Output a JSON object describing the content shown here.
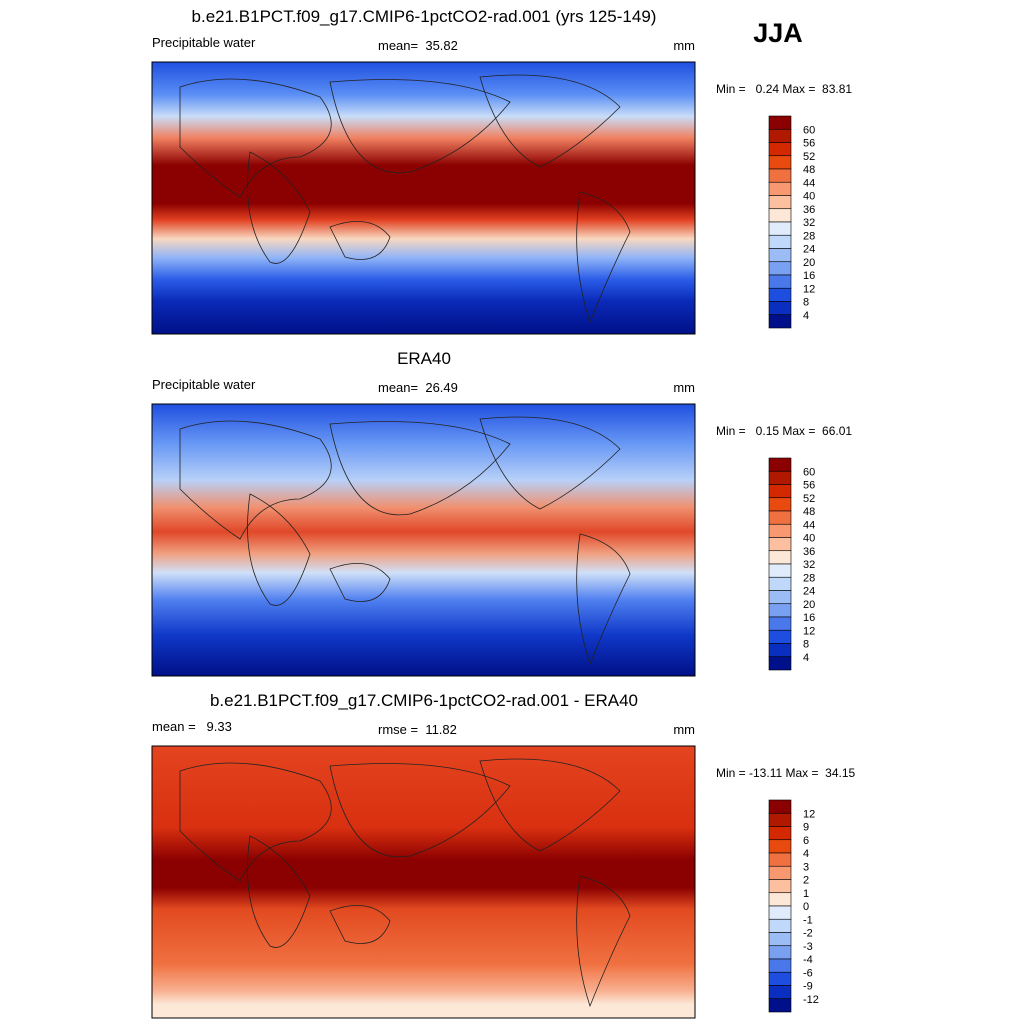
{
  "season": "JJA",
  "panels": [
    {
      "title": "b.e21.B1PCT.f09_g17.CMIP6-1pctCO2-rad.001 (yrs 125-149)",
      "left": "Precipitable water",
      "center": "mean=  35.82",
      "right": "mm",
      "stats": "Min =   0.24 Max =  83.81",
      "colorbar": [
        60,
        56,
        52,
        48,
        44,
        40,
        36,
        32,
        28,
        24,
        20,
        16,
        12,
        8,
        4
      ]
    },
    {
      "title": "ERA40",
      "left": "Precipitable water",
      "center": "mean=  26.49",
      "right": "mm",
      "stats": "Min =   0.15 Max =  66.01",
      "colorbar": [
        60,
        56,
        52,
        48,
        44,
        40,
        36,
        32,
        28,
        24,
        20,
        16,
        12,
        8,
        4
      ]
    },
    {
      "title": "b.e21.B1PCT.f09_g17.CMIP6-1pctCO2-rad.001 - ERA40",
      "left": "mean =   9.33",
      "center": "rmse =  11.82",
      "right": "mm",
      "stats": "Min = -13.11 Max =  34.15",
      "colorbar": [
        12,
        9,
        6,
        4,
        3,
        2,
        1,
        0,
        -1,
        -2,
        -3,
        -4,
        -6,
        -9,
        -12
      ]
    }
  ]
}
